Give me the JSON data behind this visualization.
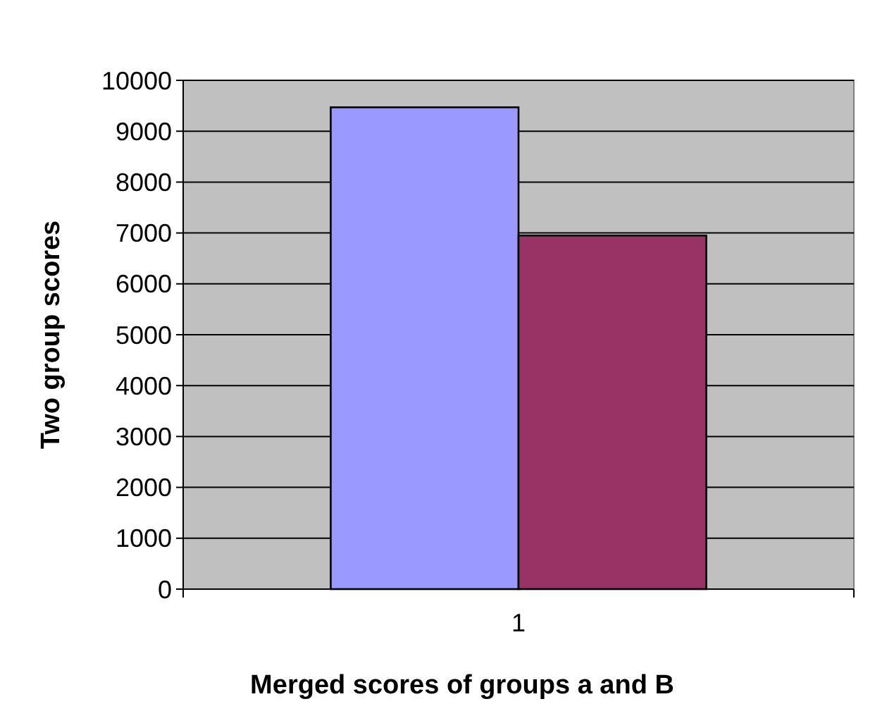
{
  "chart_data": {
    "type": "bar",
    "xlabel": "Merged scores of groups a and B",
    "ylabel": "Two group scores",
    "categories": [
      "1"
    ],
    "series": [
      {
        "color": "#9999ff",
        "values": [
          9470
        ]
      },
      {
        "color": "#993366",
        "values": [
          6950
        ]
      }
    ],
    "ylim": [
      0,
      10000
    ],
    "yticks": [
      0,
      1000,
      2000,
      3000,
      4000,
      5000,
      6000,
      7000,
      8000,
      9000,
      10000
    ],
    "grid": "y"
  }
}
